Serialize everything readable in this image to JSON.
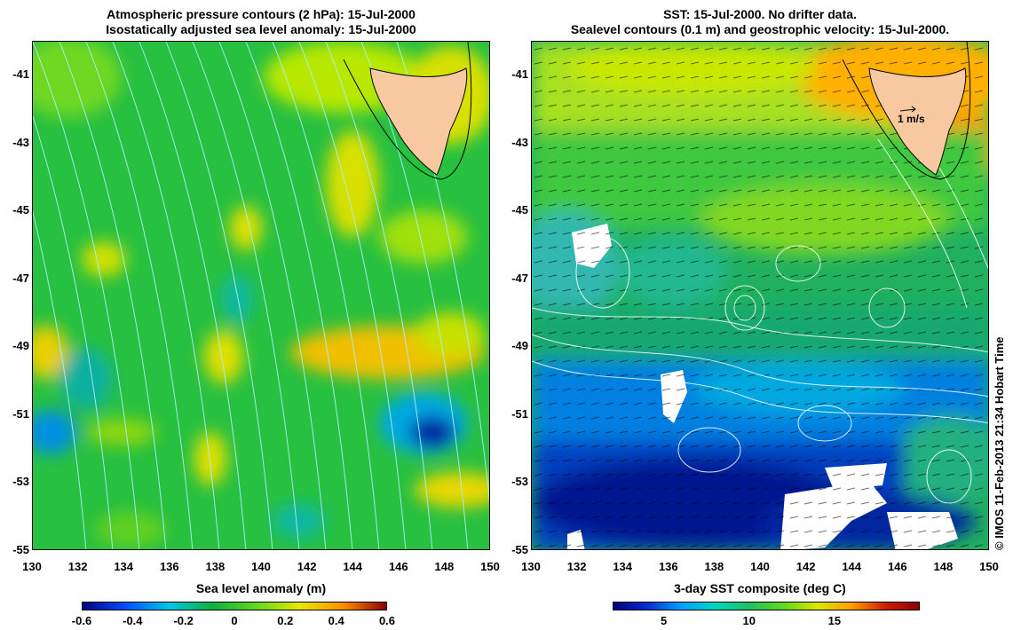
{
  "left_panel": {
    "title_line1": "Atmospheric pressure contours (2 hPa): 15-Jul-2000",
    "title_line2": "Isostatically adjusted sea level anomaly: 15-Jul-2000",
    "colorbar_label": "Sea level anomaly (m)",
    "colorbar_ticks": [
      "-0.6",
      "-0.4",
      "-0.2",
      "0",
      "0.2",
      "0.4",
      "0.6"
    ],
    "colorbar_range": [
      -0.6,
      0.6
    ],
    "colorbar_colors": [
      "#00007f",
      "#0050ff",
      "#00c8e6",
      "#10b040",
      "#60d820",
      "#e8e800",
      "#ff9000",
      "#8b0000"
    ]
  },
  "right_panel": {
    "title_line1": "SST: 15-Jul-2000. No drifter data.",
    "title_line2": "Sealevel contours (0.1 m) and geostrophic velocity: 15-Jul-2000.",
    "colorbar_label": "3-day SST composite (deg C)",
    "colorbar_ticks": [
      "5",
      "10",
      "15"
    ],
    "colorbar_tick_values": [
      5,
      10,
      15
    ],
    "colorbar_range": [
      2,
      20
    ],
    "colorbar_colors": [
      "#00007f",
      "#0030d0",
      "#00a0ff",
      "#00d8c0",
      "#20c060",
      "#60d820",
      "#d8e800",
      "#ffa000",
      "#d02000",
      "#8b0000"
    ],
    "velocity_scale_label": "1 m/s"
  },
  "axes": {
    "lat_ticks": [
      "-41",
      "-43",
      "-45",
      "-47",
      "-49",
      "-51",
      "-53",
      "-55"
    ],
    "lat_values": [
      -41,
      -43,
      -45,
      -47,
      -49,
      -51,
      -53,
      -55
    ],
    "lon_ticks": [
      "130",
      "132",
      "134",
      "136",
      "138",
      "140",
      "142",
      "144",
      "146",
      "148",
      "150"
    ],
    "lon_values": [
      130,
      132,
      134,
      136,
      138,
      140,
      142,
      144,
      146,
      148,
      150
    ],
    "lon_range": [
      130,
      150
    ],
    "lat_range": [
      -40,
      -55
    ]
  },
  "colors": {
    "land": "#f8c8a0",
    "ocean_mid_left": "#28c040",
    "missing_data": "#ffffff",
    "pressure_contour": "#a8f0ff",
    "sealevel_contour": "#ffffff"
  },
  "credit": "© IMOS 11-Feb-2013 21:34 Hobart Time"
}
